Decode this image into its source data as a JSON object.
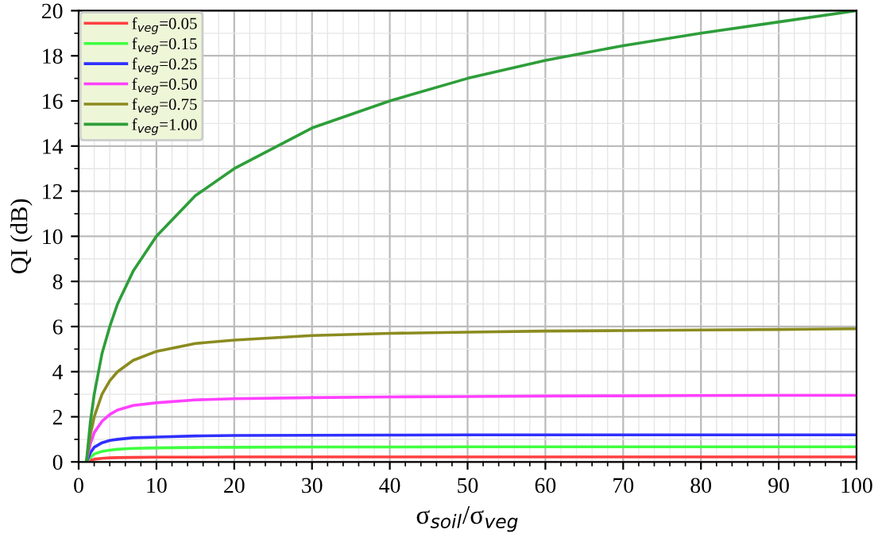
{
  "chart_data": {
    "type": "line",
    "xlabel": "σ$_{soil}$/σ$_{veg}$",
    "ylabel": "QI (dB)",
    "x": [
      1,
      1.5,
      2,
      3,
      4,
      5,
      7,
      10,
      15,
      20,
      30,
      40,
      50,
      60,
      70,
      80,
      90,
      100
    ],
    "series": [
      {
        "name": "f$_{veg}$=0.05",
        "color": "#ff4040",
        "values": [
          0,
          0.07,
          0.12,
          0.16,
          0.18,
          0.19,
          0.2,
          0.21,
          0.21,
          0.22,
          0.22,
          0.22,
          0.22,
          0.22,
          0.22,
          0.22,
          0.22,
          0.22
        ]
      },
      {
        "name": "f$_{veg}$=0.15",
        "color": "#40ff40",
        "values": [
          0,
          0.2,
          0.35,
          0.47,
          0.52,
          0.56,
          0.6,
          0.62,
          0.64,
          0.65,
          0.66,
          0.66,
          0.67,
          0.67,
          0.67,
          0.67,
          0.67,
          0.67
        ]
      },
      {
        "name": "f$_{veg}$=0.25",
        "color": "#3030ff",
        "values": [
          0,
          0.4,
          0.65,
          0.85,
          0.95,
          1.0,
          1.07,
          1.1,
          1.15,
          1.17,
          1.18,
          1.19,
          1.2,
          1.2,
          1.2,
          1.2,
          1.2,
          1.2
        ]
      },
      {
        "name": "f$_{veg}$=0.50",
        "color": "#ff40ff",
        "values": [
          0,
          0.8,
          1.3,
          1.8,
          2.1,
          2.3,
          2.5,
          2.62,
          2.75,
          2.8,
          2.85,
          2.88,
          2.9,
          2.92,
          2.93,
          2.94,
          2.95,
          2.95
        ]
      },
      {
        "name": "f$_{veg}$=0.75",
        "color": "#8b8b20",
        "values": [
          0,
          1.2,
          2.0,
          3.0,
          3.6,
          4.0,
          4.5,
          4.9,
          5.25,
          5.4,
          5.6,
          5.7,
          5.75,
          5.8,
          5.82,
          5.85,
          5.87,
          5.9
        ]
      },
      {
        "name": "f$_{veg}$=1.00",
        "color": "#2e9e3a",
        "values": [
          0,
          1.76,
          3.0,
          4.8,
          6.0,
          7.0,
          8.45,
          10,
          11.8,
          13.0,
          14.8,
          16.0,
          17.0,
          17.8,
          18.45,
          19.0,
          19.5,
          20.0
        ]
      }
    ],
    "xlim": [
      0,
      100
    ],
    "xticks": [
      0,
      10,
      20,
      30,
      40,
      50,
      60,
      70,
      80,
      90,
      100
    ],
    "ylim": [
      0,
      20
    ],
    "yticks": [
      0,
      2,
      4,
      6,
      8,
      10,
      12,
      14,
      16,
      18,
      20
    ],
    "grid": true,
    "legend": "top left",
    "line_style": "solid",
    "marker": "none"
  }
}
